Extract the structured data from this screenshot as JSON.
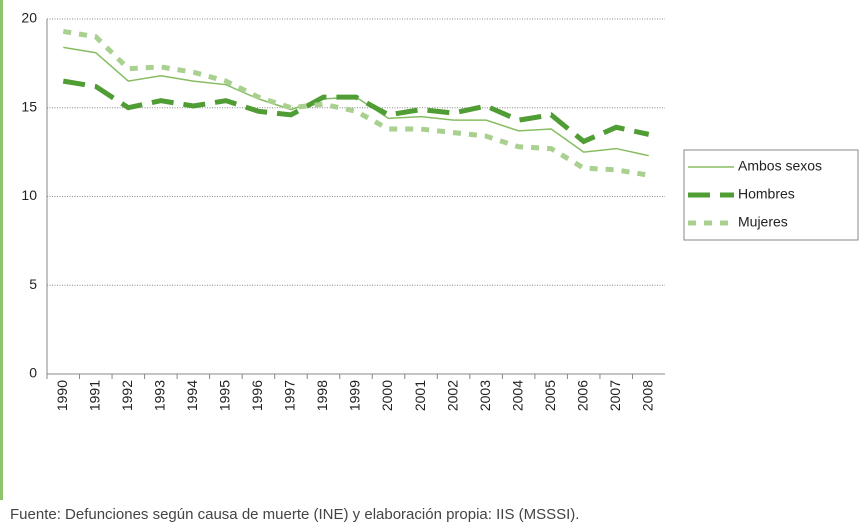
{
  "chart_data": {
    "type": "line",
    "source": "Fuente: Defunciones según causa de muerte (INE) y elaboración propia: IIS (MSSSI).",
    "categories": [
      "1990",
      "1991",
      "1992",
      "1993",
      "1994",
      "1995",
      "1996",
      "1997",
      "1998",
      "1999",
      "2000",
      "2001",
      "2002",
      "2003",
      "2004",
      "2005",
      "2006",
      "2007",
      "2008"
    ],
    "series": [
      {
        "name": "Ambos sexos",
        "color": "#86bd62",
        "style": "solid",
        "values": [
          18.4,
          18.1,
          16.5,
          16.8,
          16.5,
          16.3,
          15.5,
          14.9,
          15.5,
          15.6,
          14.4,
          14.5,
          14.3,
          14.3,
          13.7,
          13.8,
          12.5,
          12.7,
          12.3
        ]
      },
      {
        "name": "Hombres",
        "color": "#4f9d34",
        "style": "dashed",
        "values": [
          16.5,
          16.2,
          15.0,
          15.4,
          15.1,
          15.4,
          14.8,
          14.6,
          15.6,
          15.6,
          14.6,
          14.9,
          14.7,
          15.1,
          14.3,
          14.6,
          13.1,
          13.9,
          13.5
        ]
      },
      {
        "name": "Mujeres",
        "color": "#a9d08e",
        "style": "dotted",
        "values": [
          19.3,
          19.0,
          17.2,
          17.3,
          17.0,
          16.5,
          15.6,
          15.0,
          15.2,
          14.8,
          13.8,
          13.8,
          13.6,
          13.4,
          12.8,
          12.7,
          11.6,
          11.5,
          11.2
        ]
      }
    ],
    "ylim": [
      0,
      20
    ],
    "yticks": [
      0,
      5,
      10,
      15,
      20
    ],
    "grid": true,
    "legend": "right"
  }
}
